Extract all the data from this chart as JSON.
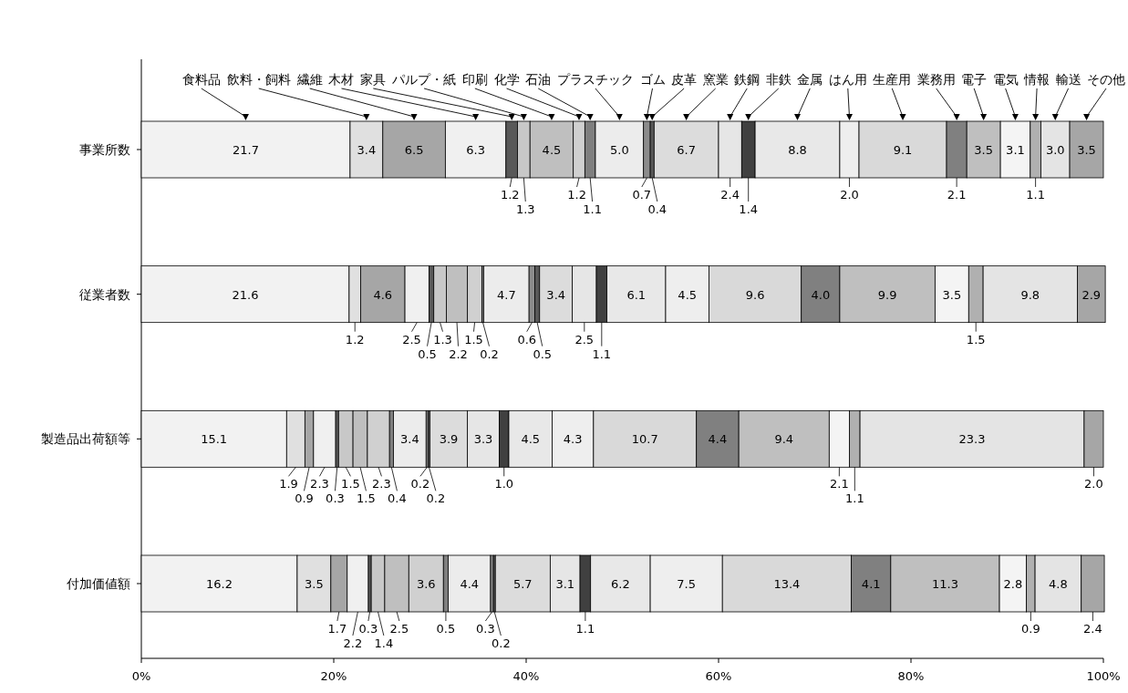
{
  "chart_data": {
    "type": "bar",
    "orientation": "horizontal",
    "stacked": true,
    "legend": "top",
    "grid": false,
    "categories": [
      "事業所数",
      "従業者数",
      "製造品出荷額等",
      "付加価値額"
    ],
    "xlim": [
      0,
      100
    ],
    "xticks": [
      {
        "value": 0,
        "label": "0%"
      },
      {
        "value": 20,
        "label": "20%"
      },
      {
        "value": 40,
        "label": "40%"
      },
      {
        "value": 60,
        "label": "60%"
      },
      {
        "value": 80,
        "label": "80%"
      },
      {
        "value": 100,
        "label": "100%"
      }
    ],
    "series": [
      {
        "name": "食料品",
        "color": "#f2f2f2",
        "values": [
          21.7,
          21.6,
          15.1,
          16.2
        ],
        "value_labels": [
          "21.7",
          "21.6",
          "15.1",
          "16.2"
        ]
      },
      {
        "name": "飲料・飼料",
        "color": "#e0e0e0",
        "values": [
          3.4,
          1.2,
          1.9,
          3.5
        ],
        "value_labels": [
          "3.4",
          "1.2",
          "1.9",
          "3.5"
        ]
      },
      {
        "name": "繊維",
        "color": "#a6a6a6",
        "values": [
          6.5,
          4.6,
          0.9,
          1.7
        ],
        "value_labels": [
          "6.5",
          "4.6",
          "0.9",
          "1.7"
        ]
      },
      {
        "name": "木材",
        "color": "#f0f0f0",
        "values": [
          6.3,
          2.5,
          2.3,
          2.2
        ],
        "value_labels": [
          "6.3",
          "2.5",
          "2.3",
          "2.2"
        ]
      },
      {
        "name": "家具",
        "color": "#595959",
        "values": [
          1.2,
          0.5,
          0.3,
          0.3
        ],
        "value_labels": [
          "1.2",
          "0.5",
          "0.3",
          "0.3"
        ]
      },
      {
        "name": "パルプ・紙",
        "color": "#c8c8c8",
        "values": [
          1.3,
          1.3,
          1.5,
          1.4
        ],
        "value_labels": [
          "1.3",
          "1.3",
          "1.5",
          "1.4"
        ]
      },
      {
        "name": "印刷",
        "color": "#bfbfbf",
        "values": [
          4.5,
          2.2,
          1.5,
          2.5
        ],
        "value_labels": [
          "4.5",
          "2.2",
          "1.5",
          "2.5"
        ]
      },
      {
        "name": "化学",
        "color": "#d0d0d0",
        "values": [
          1.2,
          1.5,
          2.3,
          3.6
        ],
        "value_labels": [
          "1.2",
          "1.5",
          "2.3",
          "3.6"
        ]
      },
      {
        "name": "石油",
        "color": "#7f7f7f",
        "values": [
          1.1,
          0.2,
          0.4,
          0.5
        ],
        "value_labels": [
          "1.1",
          "0.2",
          "0.4",
          "0.5"
        ]
      },
      {
        "name": "プラスチック",
        "color": "#ececec",
        "values": [
          5.0,
          4.7,
          3.4,
          4.4
        ],
        "value_labels": [
          "5.0",
          "4.7",
          "3.4",
          "4.4"
        ]
      },
      {
        "name": "ゴム",
        "color": "#8c8c8c",
        "values": [
          0.7,
          0.6,
          0.2,
          0.3
        ],
        "value_labels": [
          "0.7",
          "0.6",
          "0.2",
          "0.3"
        ]
      },
      {
        "name": "皮革",
        "color": "#595959",
        "values": [
          0.4,
          0.5,
          0.2,
          0.2
        ],
        "value_labels": [
          "0.4",
          "0.5",
          "0.2",
          "0.2"
        ]
      },
      {
        "name": "窯業",
        "color": "#dcdcdc",
        "values": [
          6.7,
          3.4,
          3.9,
          5.7
        ],
        "value_labels": [
          "6.7",
          "3.4",
          "3.9",
          "5.7"
        ]
      },
      {
        "name": "鉄鋼",
        "color": "#e6e6e6",
        "values": [
          2.4,
          2.5,
          3.3,
          3.1
        ],
        "value_labels": [
          "2.4",
          "2.5",
          "3.3",
          "3.1"
        ]
      },
      {
        "name": "非鉄",
        "color": "#404040",
        "values": [
          1.4,
          1.1,
          1.0,
          1.1
        ],
        "value_labels": [
          "1.4",
          "1.1",
          "1.0",
          "1.1"
        ]
      },
      {
        "name": "金属",
        "color": "#e8e8e8",
        "values": [
          8.8,
          6.1,
          4.5,
          6.2
        ],
        "value_labels": [
          "8.8",
          "6.1",
          "4.5",
          "6.2"
        ]
      },
      {
        "name": "はん用",
        "color": "#eeeeee",
        "values": [
          2.0,
          4.5,
          4.3,
          7.5
        ],
        "value_labels": [
          "2.0",
          "4.5",
          "4.3",
          "7.5"
        ]
      },
      {
        "name": "生産用",
        "color": "#d9d9d9",
        "values": [
          9.1,
          9.6,
          10.7,
          13.4
        ],
        "value_labels": [
          "9.1",
          "9.6",
          "10.7",
          "13.4"
        ]
      },
      {
        "name": "業務用",
        "color": "#808080",
        "values": [
          2.1,
          4.0,
          4.4,
          4.1
        ],
        "value_labels": [
          "2.1",
          "4.0",
          "4.4",
          "4.1"
        ]
      },
      {
        "name": "電子",
        "color": "#bfbfbf",
        "values": [
          3.5,
          9.9,
          9.4,
          11.3
        ],
        "value_labels": [
          "3.5",
          "9.9",
          "9.4",
          "11.3"
        ]
      },
      {
        "name": "電気",
        "color": "#f4f4f4",
        "values": [
          3.1,
          3.5,
          2.1,
          2.8
        ],
        "value_labels": [
          "3.1",
          "3.5",
          "2.1",
          "2.8"
        ]
      },
      {
        "name": "情報",
        "color": "#b0b0b0",
        "values": [
          1.1,
          1.5,
          1.1,
          0.9
        ],
        "value_labels": [
          "1.1",
          "1.5",
          "1.1",
          "0.9"
        ]
      },
      {
        "name": "輸送",
        "color": "#e4e4e4",
        "values": [
          3.0,
          9.8,
          23.3,
          4.8
        ],
        "value_labels": [
          "3.0",
          "9.8",
          "23.3",
          "4.8"
        ]
      },
      {
        "name": "その他",
        "color": "#a6a6a6",
        "values": [
          3.5,
          2.9,
          2.0,
          2.4
        ],
        "value_labels": [
          "3.5",
          "2.9",
          "2.0",
          "2.4"
        ]
      }
    ]
  }
}
